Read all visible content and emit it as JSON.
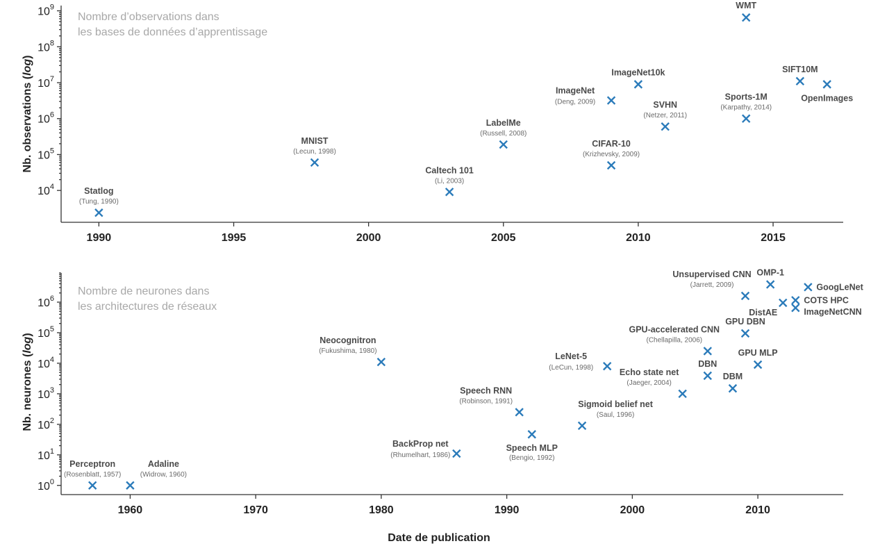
{
  "chart_data": [
    {
      "type": "scatter",
      "title": "",
      "caption_lines": [
        "Nombre d’observations dans",
        "les bases de données d’apprentissage"
      ],
      "ylabel_parts": [
        "Nb. observations (",
        "log",
        ")"
      ],
      "xlabel": "",
      "yscale": "log",
      "xlim": [
        1988.6,
        2017.6
      ],
      "ylim": [
        1300,
        1400000000
      ],
      "xticks": [
        1990,
        1995,
        2000,
        2005,
        2010,
        2015
      ],
      "yticks": [
        {
          "value": 10000,
          "base": "10",
          "exp": "4"
        },
        {
          "value": 100000,
          "base": "10",
          "exp": "5"
        },
        {
          "value": 1000000,
          "base": "10",
          "exp": "6"
        },
        {
          "value": 10000000,
          "base": "10",
          "exp": "7"
        },
        {
          "value": 100000000,
          "base": "10",
          "exp": "8"
        },
        {
          "value": 1000000000,
          "base": "10",
          "exp": "9"
        }
      ],
      "points": [
        {
          "name": "Statlog",
          "cite": "(Tung, 1990)",
          "x": 1990,
          "y": 2400,
          "label": "above"
        },
        {
          "name": "MNIST",
          "cite": "(Lecun, 1998)",
          "x": 1998,
          "y": 60000,
          "label": "above"
        },
        {
          "name": "Caltech 101",
          "cite": "(Li, 2003)",
          "x": 2003,
          "y": 9100,
          "label": "above"
        },
        {
          "name": "LabelMe",
          "cite": "(Russell, 2008)",
          "x": 2005,
          "y": 190000,
          "label": "above"
        },
        {
          "name": "CIFAR-10",
          "cite": "(Krizhevsky, 2009)",
          "x": 2009,
          "y": 50000,
          "label": "above"
        },
        {
          "name": "ImageNet",
          "cite": "(Deng, 2009)",
          "x": 2009,
          "y": 3200000,
          "label": "left"
        },
        {
          "name": "ImageNet10k",
          "cite": "",
          "x": 2010,
          "y": 9000000,
          "label": "above"
        },
        {
          "name": "SVHN",
          "cite": "(Netzer, 2011)",
          "x": 2011,
          "y": 600000,
          "label": "above"
        },
        {
          "name": "Sports-1M",
          "cite": "(Karpathy, 2014)",
          "x": 2014,
          "y": 1000000,
          "label": "above"
        },
        {
          "name": "WMT",
          "cite": "",
          "x": 2014,
          "y": 650000000,
          "label": "above"
        },
        {
          "name": "SIFT10M",
          "cite": "",
          "x": 2016,
          "y": 11000000,
          "label": "above"
        },
        {
          "name": "OpenImages",
          "cite": "",
          "x": 2017,
          "y": 9000000,
          "label": "below"
        }
      ]
    },
    {
      "type": "scatter",
      "title": "",
      "caption_lines": [
        "Nombre de neurones dans",
        "les architectures de réseaux"
      ],
      "ylabel_parts": [
        "Nb. neurones (",
        "log",
        ")"
      ],
      "xlabel": "Date de publication",
      "yscale": "log",
      "xlim": [
        1954.5,
        2016.8
      ],
      "ylim": [
        0.5,
        9000000
      ],
      "xticks": [
        1960,
        1970,
        1980,
        1990,
        2000,
        2010
      ],
      "yticks": [
        {
          "value": 1,
          "base": "10",
          "exp": "0"
        },
        {
          "value": 10,
          "base": "10",
          "exp": "1"
        },
        {
          "value": 100,
          "base": "10",
          "exp": "2"
        },
        {
          "value": 1000,
          "base": "10",
          "exp": "3"
        },
        {
          "value": 10000,
          "base": "10",
          "exp": "4"
        },
        {
          "value": 100000,
          "base": "10",
          "exp": "5"
        },
        {
          "value": 1000000,
          "base": "10",
          "exp": "6"
        }
      ],
      "points": [
        {
          "name": "Perceptron",
          "cite": "(Rosenblatt, 1957)",
          "x": 1957,
          "y": 1,
          "label": "above"
        },
        {
          "name": "Adaline",
          "cite": "(Widrow, 1960)",
          "x": 1960,
          "y": 1,
          "label": "above-right"
        },
        {
          "name": "Neocognitron",
          "cite": "(Fukushima, 1980)",
          "x": 1980,
          "y": 11000,
          "label": "above-left"
        },
        {
          "name": "BackProp net",
          "cite": "(Rhumelhart, 1986)",
          "x": 1986,
          "y": 11,
          "label": "left"
        },
        {
          "name": "Speech RNN",
          "cite": "(Robinson, 1991)",
          "x": 1991,
          "y": 250,
          "label": "above-left"
        },
        {
          "name": "Speech MLP",
          "cite": "(Bengio, 1992)",
          "x": 1992,
          "y": 47,
          "label": "below"
        },
        {
          "name": "Sigmoid belief net",
          "cite": "(Saul, 1996)",
          "x": 1996,
          "y": 90,
          "label": "above-right"
        },
        {
          "name": "LeNet-5",
          "cite": "(LeCun, 1998)",
          "x": 1998,
          "y": 8000,
          "label": "left"
        },
        {
          "name": "Echo state net",
          "cite": "(Jaeger, 2004)",
          "x": 2004,
          "y": 1000,
          "label": "above-left"
        },
        {
          "name": "GPU-accelerated CNN",
          "cite": "(Chellapilla, 2006)",
          "x": 2006,
          "y": 25000,
          "label": "above-left"
        },
        {
          "name": "DBN",
          "cite": "",
          "x": 2006,
          "y": 3900,
          "label": "above"
        },
        {
          "name": "GPU DBN",
          "cite": "",
          "x": 2009,
          "y": 95000,
          "label": "above"
        },
        {
          "name": "DBM",
          "cite": "",
          "x": 2008,
          "y": 1500,
          "label": "above"
        },
        {
          "name": "GPU MLP",
          "cite": "",
          "x": 2010,
          "y": 9000,
          "label": "above"
        },
        {
          "name": "Unsupervised CNN",
          "cite": "(Jarrett, 2009)",
          "x": 2009,
          "y": 1600000,
          "label": "above-left"
        },
        {
          "name": "OMP-1",
          "cite": "",
          "x": 2011,
          "y": 3800000,
          "label": "above"
        },
        {
          "name": "DistAE",
          "cite": "",
          "x": 2012,
          "y": 950000,
          "label": "below-left"
        },
        {
          "name": "COTS HPC",
          "cite": "",
          "x": 2013,
          "y": 1150000,
          "label": "right"
        },
        {
          "name": "ImageNetCNN",
          "cite": "",
          "x": 2013,
          "y": 650000,
          "label": "right-below"
        },
        {
          "name": "GoogLeNet",
          "cite": "",
          "x": 2014,
          "y": 3100000,
          "label": "right"
        }
      ]
    }
  ]
}
